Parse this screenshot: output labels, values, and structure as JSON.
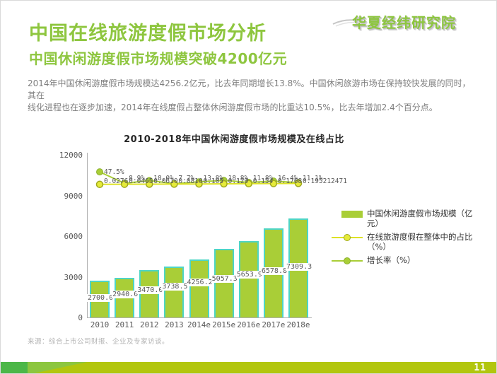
{
  "page": {
    "page_number": "11"
  },
  "header": {
    "title": "中国在线旅游度假市场分析",
    "subtitle": "中国休闲游度假市场规模突破4200亿元",
    "body_line1": "2014年中国休闲游度假市场规模达4256.2亿元，比去年同期增长13.8%。中国休闲旅游市场在保持较快发展的同时，其在",
    "body_line2": "线化进程也在逐步加速，2014年在线度假占整体休闲游度假市场的比重达10.5%，比去年增加2.4个百分点。",
    "logo_text": "华夏经纬研究院"
  },
  "chart_data": {
    "type": "bar",
    "title": "2010-2018年中国休闲游度假市场规模及在线占比",
    "categories": [
      "2010",
      "2011",
      "2012",
      "2013",
      "2014e",
      "2015e",
      "2016e",
      "2017e",
      "2018e"
    ],
    "y_axis": {
      "ticks": [
        "12000",
        "9000",
        "6000",
        "3000",
        "0"
      ],
      "max": 12000,
      "min": 0
    },
    "legend_position": "right",
    "series": [
      {
        "name": "中国休闲游度假市场规模（亿元）",
        "type": "bar",
        "values": [
          2700.0,
          2940.0,
          3470.0,
          3738.5,
          4256.2,
          5057.3,
          5653.9,
          6578.8,
          7309.3
        ],
        "labels": [
          "2700.0",
          "2940.0",
          "3470.0",
          "3738.5",
          "4256.2",
          "5057.3",
          "5653.9",
          "6578.8",
          "7309.3"
        ]
      },
      {
        "name": "在线旅游度假在整体中的占比（%）",
        "type": "line",
        "values": [
          0.0276,
          0.0465,
          0.061,
          0.081,
          0.105,
          0.129,
          0.154,
          0.1768,
          0.195212471
        ],
        "labels": [
          "0.0276",
          "0.0465",
          "0.0610",
          "0.0810",
          "0.105",
          "0.129",
          "0.154",
          "0.1768",
          "0.195212471"
        ]
      },
      {
        "name": "增长率（%）",
        "type": "line",
        "values": [
          47.5,
          8.9,
          18.0,
          7.7,
          13.8,
          18.8,
          11.8,
          16.4,
          11.1
        ],
        "labels": [
          "47.5%",
          "8.9%",
          "18.0%",
          "7.7%",
          "13.8%",
          "18.8%",
          "11.8%",
          "16.4%",
          "11.1%"
        ]
      }
    ]
  },
  "source": "来源：综合上市公司财报、企业及专家访谈。",
  "colors": {
    "accent_green": "#8ec63f",
    "bar_fill": "#a9ce37",
    "bar_border": "#4ed5c5",
    "proportion_line": "#dde226",
    "proportion_dot_fill": "#e6eb3a",
    "proportion_dot_stroke": "#9fa81e",
    "growth_line": "#a9ce37",
    "label_gray": "#595959",
    "bottom_bar_main": "#b2c60e",
    "bottom_bar_dark": "#4cb748",
    "bottom_bar_mid": "#8cc63f"
  }
}
